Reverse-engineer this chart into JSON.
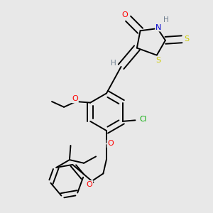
{
  "bg_color": "#e8e8e8",
  "fig_size": [
    3.0,
    3.0
  ],
  "dpi": 100,
  "atom_colors": {
    "O": "#ff0000",
    "N": "#0000cd",
    "S": "#cccc00",
    "Cl": "#00aa00",
    "C": "#000000",
    "H": "#708090"
  },
  "bond_color": "#000000",
  "bond_width": 1.4
}
